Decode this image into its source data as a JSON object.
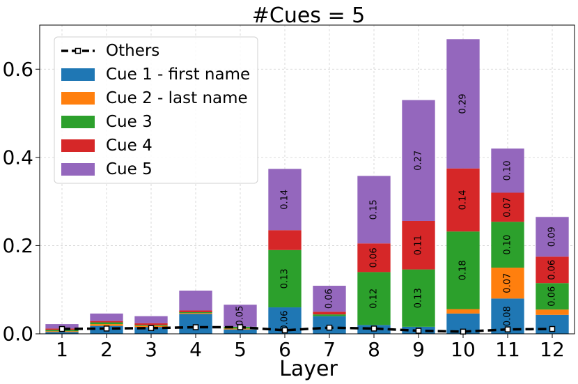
{
  "chart_data": {
    "type": "bar",
    "stacked": true,
    "title": "#Cues = 5",
    "xlabel": "Layer",
    "ylabel": "",
    "ylim": [
      0,
      0.7
    ],
    "yticks": [
      0.0,
      0.2,
      0.4,
      0.6
    ],
    "ytick_labels": [
      "0.0",
      "0.2",
      "0.4",
      "0.6"
    ],
    "categories": [
      "1",
      "2",
      "3",
      "4",
      "5",
      "6",
      "7",
      "8",
      "9",
      "10",
      "11",
      "12"
    ],
    "grid": true,
    "legend_position": "top-left",
    "series": [
      {
        "name": "Cue 1 - first name",
        "color": "#1f77b4",
        "values": [
          0.004,
          0.018,
          0.015,
          0.045,
          0.01,
          0.06,
          0.04,
          0.02,
          0.016,
          0.046,
          0.08,
          0.043
        ]
      },
      {
        "name": "Cue 2 - last name",
        "color": "#ff7f0e",
        "values": [
          0.002,
          0.004,
          0.003,
          0.002,
          0.002,
          0.0,
          0.0,
          0.0,
          0.0,
          0.01,
          0.07,
          0.012
        ]
      },
      {
        "name": "Cue 3",
        "color": "#2ca02c",
        "values": [
          0.003,
          0.004,
          0.002,
          0.002,
          0.004,
          0.13,
          0.004,
          0.12,
          0.13,
          0.176,
          0.104,
          0.06
        ]
      },
      {
        "name": "Cue 4",
        "color": "#d62728",
        "values": [
          0.003,
          0.003,
          0.004,
          0.004,
          0.0,
          0.045,
          0.006,
          0.065,
          0.11,
          0.143,
          0.066,
          0.06
        ]
      },
      {
        "name": "Cue 5",
        "color": "#9467bd",
        "values": [
          0.01,
          0.017,
          0.016,
          0.045,
          0.05,
          0.139,
          0.059,
          0.153,
          0.274,
          0.293,
          0.1,
          0.09
        ]
      }
    ],
    "bar_labels": [
      [
        null,
        null,
        null,
        null,
        null,
        "0.06",
        null,
        null,
        null,
        null,
        "0.08",
        null
      ],
      [
        null,
        null,
        null,
        null,
        null,
        null,
        null,
        null,
        null,
        null,
        "0.07",
        null
      ],
      [
        null,
        null,
        null,
        null,
        null,
        "0.13",
        null,
        "0.12",
        "0.13",
        "0.18",
        "0.10",
        "0.06"
      ],
      [
        null,
        null,
        null,
        null,
        null,
        null,
        null,
        "0.06",
        "0.11",
        "0.14",
        "0.07",
        "0.06"
      ],
      [
        null,
        null,
        null,
        null,
        "0.05",
        "0.14",
        "0.06",
        "0.15",
        "0.27",
        "0.29",
        "0.10",
        "0.09"
      ]
    ],
    "others": {
      "name": "Others",
      "color": "#000000",
      "values": [
        0.011,
        0.012,
        0.013,
        0.015,
        0.015,
        0.008,
        0.014,
        0.012,
        0.007,
        0.005,
        0.01,
        0.011
      ]
    }
  }
}
